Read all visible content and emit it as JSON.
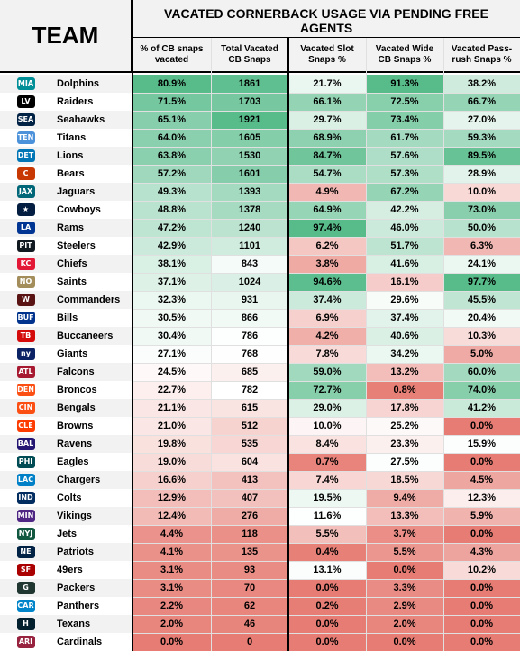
{
  "header": {
    "team_label": "TEAM",
    "title": "VACATED CORNERBACK USAGE VIA PENDING FREE AGENTS",
    "columns": [
      "% of CB snaps vacated",
      "Total Vacated CB Snaps",
      "Vacated Slot Snaps %",
      "Vacated Wide CB Snaps %",
      "Vacated Pass-rush Snaps %"
    ]
  },
  "colors": {
    "high": "#57bb8a",
    "mid": "#ffffff",
    "low": "#e67c73"
  },
  "chart_data": {
    "type": "table",
    "title": "VACATED CORNERBACK USAGE VIA PENDING FREE AGENTS",
    "columns": [
      "TEAM",
      "% of CB snaps vacated",
      "Total Vacated CB Snaps",
      "Vacated Slot Snaps %",
      "Vacated Wide CB Snaps %",
      "Vacated Pass-rush Snaps %"
    ],
    "rows": [
      {
        "team": "Dolphins",
        "icon": "dolphins-logo",
        "logo_color": "#008e97",
        "logo_text": "MIA",
        "pct": "80.9%",
        "total": "1861",
        "slot": "21.7%",
        "wide": "91.3%",
        "rush": "38.2%"
      },
      {
        "team": "Raiders",
        "icon": "raiders-logo",
        "logo_color": "#000000",
        "logo_text": "LV",
        "pct": "71.5%",
        "total": "1703",
        "slot": "66.1%",
        "wide": "72.5%",
        "rush": "66.7%"
      },
      {
        "team": "Seahawks",
        "icon": "seahawks-logo",
        "logo_color": "#002244",
        "logo_text": "SEA",
        "pct": "65.1%",
        "total": "1921",
        "slot": "29.7%",
        "wide": "73.4%",
        "rush": "27.0%"
      },
      {
        "team": "Titans",
        "icon": "titans-logo",
        "logo_color": "#4b92db",
        "logo_text": "TEN",
        "pct": "64.0%",
        "total": "1605",
        "slot": "68.9%",
        "wide": "61.7%",
        "rush": "59.3%"
      },
      {
        "team": "Lions",
        "icon": "lions-logo",
        "logo_color": "#0076b6",
        "logo_text": "DET",
        "pct": "63.8%",
        "total": "1530",
        "slot": "84.7%",
        "wide": "57.6%",
        "rush": "89.5%"
      },
      {
        "team": "Bears",
        "icon": "bears-logo",
        "logo_color": "#c83803",
        "logo_text": "C",
        "pct": "57.2%",
        "total": "1601",
        "slot": "54.7%",
        "wide": "57.3%",
        "rush": "28.9%"
      },
      {
        "team": "Jaguars",
        "icon": "jaguars-logo",
        "logo_color": "#006778",
        "logo_text": "JAX",
        "pct": "49.3%",
        "total": "1393",
        "slot": "4.9%",
        "wide": "67.2%",
        "rush": "10.0%"
      },
      {
        "team": "Cowboys",
        "icon": "cowboys-logo",
        "logo_color": "#041e42",
        "logo_text": "★",
        "pct": "48.8%",
        "total": "1378",
        "slot": "64.9%",
        "wide": "42.2%",
        "rush": "73.0%"
      },
      {
        "team": "Rams",
        "icon": "rams-logo",
        "logo_color": "#003594",
        "logo_text": "LA",
        "pct": "47.2%",
        "total": "1240",
        "slot": "97.4%",
        "wide": "46.0%",
        "rush": "50.0%"
      },
      {
        "team": "Steelers",
        "icon": "steelers-logo",
        "logo_color": "#101820",
        "logo_text": "PIT",
        "pct": "42.9%",
        "total": "1101",
        "slot": "6.2%",
        "wide": "51.7%",
        "rush": "6.3%"
      },
      {
        "team": "Chiefs",
        "icon": "chiefs-logo",
        "logo_color": "#e31837",
        "logo_text": "KC",
        "pct": "38.1%",
        "total": "843",
        "slot": "3.8%",
        "wide": "41.6%",
        "rush": "24.1%"
      },
      {
        "team": "Saints",
        "icon": "saints-logo",
        "logo_color": "#a28d5b",
        "logo_text": "NO",
        "pct": "37.1%",
        "total": "1024",
        "slot": "94.6%",
        "wide": "16.1%",
        "rush": "97.7%"
      },
      {
        "team": "Commanders",
        "icon": "commanders-logo",
        "logo_color": "#5a1414",
        "logo_text": "W",
        "pct": "32.3%",
        "total": "931",
        "slot": "37.4%",
        "wide": "29.6%",
        "rush": "45.5%"
      },
      {
        "team": "Bills",
        "icon": "bills-logo",
        "logo_color": "#00338d",
        "logo_text": "BUF",
        "pct": "30.5%",
        "total": "866",
        "slot": "6.9%",
        "wide": "37.4%",
        "rush": "20.4%"
      },
      {
        "team": "Buccaneers",
        "icon": "buccaneers-logo",
        "logo_color": "#d50a0a",
        "logo_text": "TB",
        "pct": "30.4%",
        "total": "786",
        "slot": "4.2%",
        "wide": "40.6%",
        "rush": "10.3%"
      },
      {
        "team": "Giants",
        "icon": "giants-logo",
        "logo_color": "#0b2265",
        "logo_text": "ny",
        "pct": "27.1%",
        "total": "768",
        "slot": "7.8%",
        "wide": "34.2%",
        "rush": "5.0%"
      },
      {
        "team": "Falcons",
        "icon": "falcons-logo",
        "logo_color": "#a71930",
        "logo_text": "ATL",
        "pct": "24.5%",
        "total": "685",
        "slot": "59.0%",
        "wide": "13.2%",
        "rush": "60.0%"
      },
      {
        "team": "Broncos",
        "icon": "broncos-logo",
        "logo_color": "#fb4f14",
        "logo_text": "DEN",
        "pct": "22.7%",
        "total": "782",
        "slot": "72.7%",
        "wide": "0.8%",
        "rush": "74.0%"
      },
      {
        "team": "Bengals",
        "icon": "bengals-logo",
        "logo_color": "#fb4f14",
        "logo_text": "CIN",
        "pct": "21.1%",
        "total": "615",
        "slot": "29.0%",
        "wide": "17.8%",
        "rush": "41.2%"
      },
      {
        "team": "Browns",
        "icon": "browns-logo",
        "logo_color": "#ff3c00",
        "logo_text": "CLE",
        "pct": "21.0%",
        "total": "512",
        "slot": "10.0%",
        "wide": "25.2%",
        "rush": "0.0%"
      },
      {
        "team": "Ravens",
        "icon": "ravens-logo",
        "logo_color": "#241773",
        "logo_text": "BAL",
        "pct": "19.8%",
        "total": "535",
        "slot": "8.4%",
        "wide": "23.3%",
        "rush": "15.9%"
      },
      {
        "team": "Eagles",
        "icon": "eagles-logo",
        "logo_color": "#004c54",
        "logo_text": "PHI",
        "pct": "19.0%",
        "total": "604",
        "slot": "0.7%",
        "wide": "27.5%",
        "rush": "0.0%"
      },
      {
        "team": "Chargers",
        "icon": "chargers-logo",
        "logo_color": "#0080c6",
        "logo_text": "LAC",
        "pct": "16.6%",
        "total": "413",
        "slot": "7.4%",
        "wide": "18.5%",
        "rush": "4.5%"
      },
      {
        "team": "Colts",
        "icon": "colts-logo",
        "logo_color": "#002c5f",
        "logo_text": "IND",
        "pct": "12.9%",
        "total": "407",
        "slot": "19.5%",
        "wide": "9.4%",
        "rush": "12.3%"
      },
      {
        "team": "Vikings",
        "icon": "vikings-logo",
        "logo_color": "#4f2683",
        "logo_text": "MIN",
        "pct": "12.4%",
        "total": "276",
        "slot": "11.6%",
        "wide": "13.3%",
        "rush": "5.9%"
      },
      {
        "team": "Jets",
        "icon": "jets-logo",
        "logo_color": "#125740",
        "logo_text": "NYJ",
        "pct": "4.4%",
        "total": "118",
        "slot": "5.5%",
        "wide": "3.7%",
        "rush": "0.0%"
      },
      {
        "team": "Patriots",
        "icon": "patriots-logo",
        "logo_color": "#002244",
        "logo_text": "NE",
        "pct": "4.1%",
        "total": "135",
        "slot": "0.4%",
        "wide": "5.5%",
        "rush": "4.3%"
      },
      {
        "team": "49ers",
        "icon": "49ers-logo",
        "logo_color": "#aa0000",
        "logo_text": "SF",
        "pct": "3.1%",
        "total": "93",
        "slot": "13.1%",
        "wide": "0.0%",
        "rush": "10.2%"
      },
      {
        "team": "Packers",
        "icon": "packers-logo",
        "logo_color": "#203731",
        "logo_text": "G",
        "pct": "3.1%",
        "total": "70",
        "slot": "0.0%",
        "wide": "3.3%",
        "rush": "0.0%"
      },
      {
        "team": "Panthers",
        "icon": "panthers-logo",
        "logo_color": "#0085ca",
        "logo_text": "CAR",
        "pct": "2.2%",
        "total": "62",
        "slot": "0.2%",
        "wide": "2.9%",
        "rush": "0.0%"
      },
      {
        "team": "Texans",
        "icon": "texans-logo",
        "logo_color": "#03202f",
        "logo_text": "H",
        "pct": "2.0%",
        "total": "46",
        "slot": "0.0%",
        "wide": "2.0%",
        "rush": "0.0%"
      },
      {
        "team": "Cardinals",
        "icon": "cardinals-logo",
        "logo_color": "#97233f",
        "logo_text": "ARI",
        "pct": "0.0%",
        "total": "0",
        "slot": "0.0%",
        "wide": "0.0%",
        "rush": "0.0%"
      }
    ]
  }
}
